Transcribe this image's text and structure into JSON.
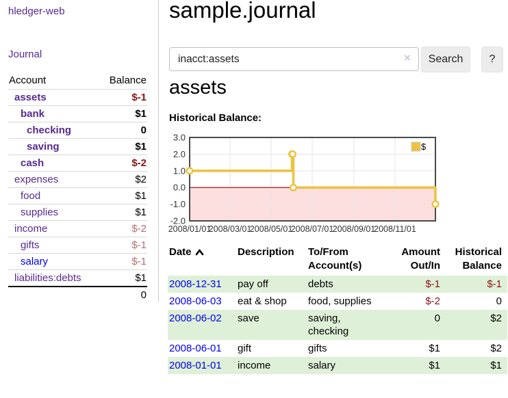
{
  "colors": {
    "purple": "#552a93",
    "blue": "#0000ee",
    "neg-strong": "#8c1313",
    "neg-muted": "#b26e6e",
    "row-green": "#dff0d8",
    "gold": "#edc240",
    "pink": "#fcdede",
    "zero-red": "#8b0000"
  },
  "sidebar": {
    "brand": "hledger-web",
    "nav_journal": "Journal",
    "accounts_table": {
      "headers": {
        "account": "Account",
        "balance": "Balance"
      },
      "rows": [
        {
          "account": "assets",
          "depth": 1,
          "bold": true,
          "balance": "$-1",
          "neg": "strong",
          "link": "visited"
        },
        {
          "account": "bank",
          "depth": 2,
          "bold": true,
          "balance": "$1",
          "neg": "none",
          "link": "visited"
        },
        {
          "account": "checking",
          "depth": 3,
          "bold": true,
          "balance": "0",
          "neg": "none",
          "link": "visited"
        },
        {
          "account": "saving",
          "depth": 3,
          "bold": true,
          "balance": "$1",
          "neg": "none",
          "link": "visited"
        },
        {
          "account": "cash",
          "depth": 2,
          "bold": true,
          "balance": "$-2",
          "neg": "strong",
          "link": "visited"
        },
        {
          "account": "expenses",
          "depth": 1,
          "bold": false,
          "balance": "$2",
          "neg": "none",
          "link": "visited"
        },
        {
          "account": "food",
          "depth": 2,
          "bold": false,
          "balance": "$1",
          "neg": "none",
          "link": "visited"
        },
        {
          "account": "supplies",
          "depth": 2,
          "bold": false,
          "balance": "$1",
          "neg": "none",
          "link": "visited"
        },
        {
          "account": "income",
          "depth": 1,
          "bold": false,
          "balance": "$-2",
          "neg": "muted",
          "link": "visited"
        },
        {
          "account": "gifts",
          "depth": 2,
          "bold": false,
          "balance": "$-1",
          "neg": "muted",
          "link": "visited"
        },
        {
          "account": "salary",
          "depth": 2,
          "bold": false,
          "balance": "$-1",
          "neg": "muted",
          "link": "unvisited"
        },
        {
          "account": "liabilities:debts",
          "depth": 1,
          "bold": false,
          "balance": "$1",
          "neg": "none",
          "link": "visited"
        }
      ],
      "total": "0"
    }
  },
  "main": {
    "title": "sample.journal",
    "search": {
      "value": "inacct:assets",
      "clear_icon": "×",
      "button_label": "Search",
      "help_label": "?"
    },
    "account_heading": "assets"
  },
  "chart_data": {
    "type": "line",
    "title": "Historical Balance:",
    "legend": [
      {
        "label": "$",
        "color": "#edc240"
      }
    ],
    "x_ticks": [
      {
        "label": "2008/01/01",
        "day": 0
      },
      {
        "label": "2008/03/01",
        "day": 60
      },
      {
        "label": "2008/05/01",
        "day": 121
      },
      {
        "label": "2008/07/01",
        "day": 182
      },
      {
        "label": "2008/09/01",
        "day": 244
      },
      {
        "label": "2008/11/01",
        "day": 305
      }
    ],
    "y_ticks": [
      "3.0",
      "2.0",
      "1.0",
      "0.0",
      "-1.0",
      "-2.0"
    ],
    "ylim": [
      -2,
      3
    ],
    "x_total_days": 365,
    "series": [
      {
        "name": "$",
        "color": "#edc240",
        "step": true,
        "points": [
          {
            "date": "2008-01-01",
            "day": 0,
            "value": 1
          },
          {
            "date": "2008-06-01",
            "day": 152,
            "value": 2
          },
          {
            "date": "2008-06-02",
            "day": 153,
            "value": 2
          },
          {
            "date": "2008-06-03",
            "day": 154,
            "value": 0
          },
          {
            "date": "2008-12-31",
            "day": 365,
            "value": -1
          }
        ]
      }
    ],
    "zero_line_color": "#8b0000",
    "negative_region_color": "#fcdede",
    "grid_on": true
  },
  "register": {
    "headers": [
      {
        "label": "Date",
        "sort": "ascending",
        "sort_icon": "chevron-up-icon"
      },
      {
        "label": "Description"
      },
      {
        "label": "To/From Account(s)"
      },
      {
        "label": "Amount Out/In"
      },
      {
        "label": "Historical Balance"
      }
    ],
    "rows": [
      {
        "date": "2008-12-31",
        "description": "pay off",
        "accounts": [
          "debts"
        ],
        "amount": "$-1",
        "amount_negative": true,
        "balance": "$-1",
        "balance_negative": true,
        "highlight": true
      },
      {
        "date": "2008-06-03",
        "description": "eat & shop",
        "accounts": [
          "food, supplies"
        ],
        "amount": "$-2",
        "amount_negative": true,
        "balance": "0",
        "balance_negative": false,
        "highlight": false
      },
      {
        "date": "2008-06-02",
        "description": "save",
        "accounts": [
          "saving,",
          "checking"
        ],
        "amount": "0",
        "amount_negative": false,
        "balance": "$2",
        "balance_negative": false,
        "highlight": true
      },
      {
        "date": "2008-06-01",
        "description": "gift",
        "accounts": [
          "gifts"
        ],
        "amount": "$1",
        "amount_negative": false,
        "balance": "$2",
        "balance_negative": false,
        "highlight": false
      },
      {
        "date": "2008-01-01",
        "description": "income",
        "accounts": [
          "salary"
        ],
        "amount": "$1",
        "amount_negative": false,
        "balance": "$1",
        "balance_negative": false,
        "highlight": true
      }
    ]
  }
}
